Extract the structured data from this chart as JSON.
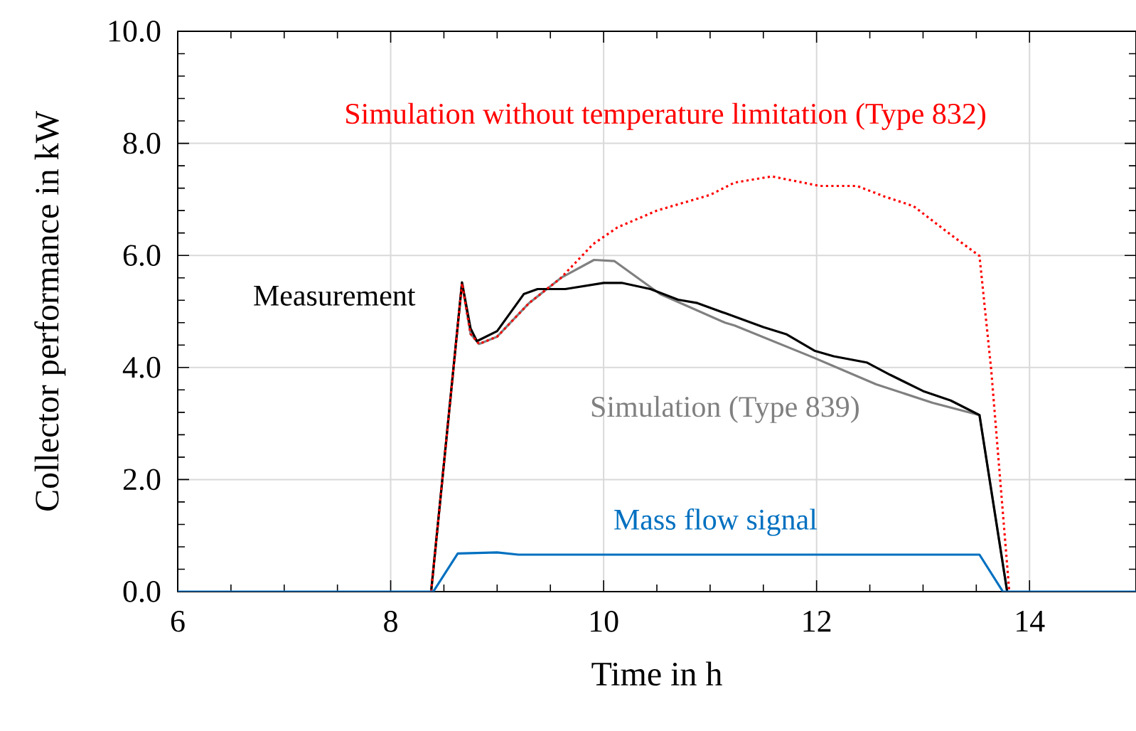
{
  "chart_data": {
    "type": "line",
    "xlabel": "Time in h",
    "ylabel": "Collector performance in kW",
    "xlim": [
      6,
      15
    ],
    "ylim": [
      0,
      10
    ],
    "xticks": [
      6,
      8,
      10,
      12,
      14
    ],
    "yticks": [
      {
        "value": 0,
        "label": "0.0"
      },
      {
        "value": 2,
        "label": "2.0"
      },
      {
        "value": 4,
        "label": "4.0"
      },
      {
        "value": 6,
        "label": "6.0"
      },
      {
        "value": 8,
        "label": "8.0"
      },
      {
        "value": 10,
        "label": "10.0"
      }
    ],
    "grid": true,
    "marker": "none",
    "series": [
      {
        "name": "Simulation (Type 839)",
        "color": "#808080",
        "line_style": "solid",
        "x": [
          8.38,
          8.67,
          8.75,
          8.83,
          9.0,
          9.3,
          9.6,
          9.91,
          10.1,
          10.53,
          11.14,
          11.23,
          11.98,
          12.56,
          13.09,
          13.53,
          13.79
        ],
        "values": [
          0,
          5.5,
          4.6,
          4.42,
          4.55,
          5.15,
          5.6,
          5.92,
          5.9,
          5.31,
          4.8,
          4.75,
          4.17,
          3.7,
          3.37,
          3.15,
          0
        ]
      },
      {
        "name": "Measurement",
        "color": "#000000",
        "line_style": "solid",
        "x": [
          8.38,
          8.67,
          8.75,
          8.81,
          9.0,
          9.25,
          9.38,
          9.64,
          10.0,
          10.17,
          10.44,
          10.7,
          10.88,
          11.14,
          11.5,
          11.72,
          11.98,
          12.16,
          12.47,
          12.69,
          13.0,
          13.26,
          13.53,
          13.79
        ],
        "values": [
          0,
          5.52,
          4.7,
          4.47,
          4.65,
          5.31,
          5.4,
          5.4,
          5.51,
          5.51,
          5.4,
          5.21,
          5.15,
          4.97,
          4.72,
          4.59,
          4.3,
          4.2,
          4.09,
          3.87,
          3.58,
          3.41,
          3.15,
          0
        ]
      },
      {
        "name": "Simulation without temperature limitation (Type 832)",
        "color": "#ff0000",
        "line_style": "dotted",
        "x": [
          8.38,
          8.67,
          8.75,
          8.83,
          9.0,
          9.3,
          9.6,
          9.9,
          10.13,
          10.5,
          11.0,
          11.23,
          11.58,
          12.03,
          12.38,
          12.64,
          12.91,
          13.26,
          13.53,
          13.64,
          13.81
        ],
        "values": [
          0,
          5.5,
          4.6,
          4.42,
          4.55,
          5.15,
          5.6,
          6.2,
          6.5,
          6.8,
          7.08,
          7.3,
          7.41,
          7.24,
          7.24,
          7.05,
          6.88,
          6.37,
          5.99,
          3.96,
          0
        ]
      },
      {
        "name": "Mass flow signal",
        "color": "#0070c0",
        "line_style": "solid",
        "x": [
          6,
          8.4,
          8.63,
          9.0,
          9.2,
          13.53,
          13.75,
          15
        ],
        "values": [
          0,
          0,
          0.68,
          0.7,
          0.66,
          0.66,
          0,
          0
        ]
      }
    ]
  }
}
